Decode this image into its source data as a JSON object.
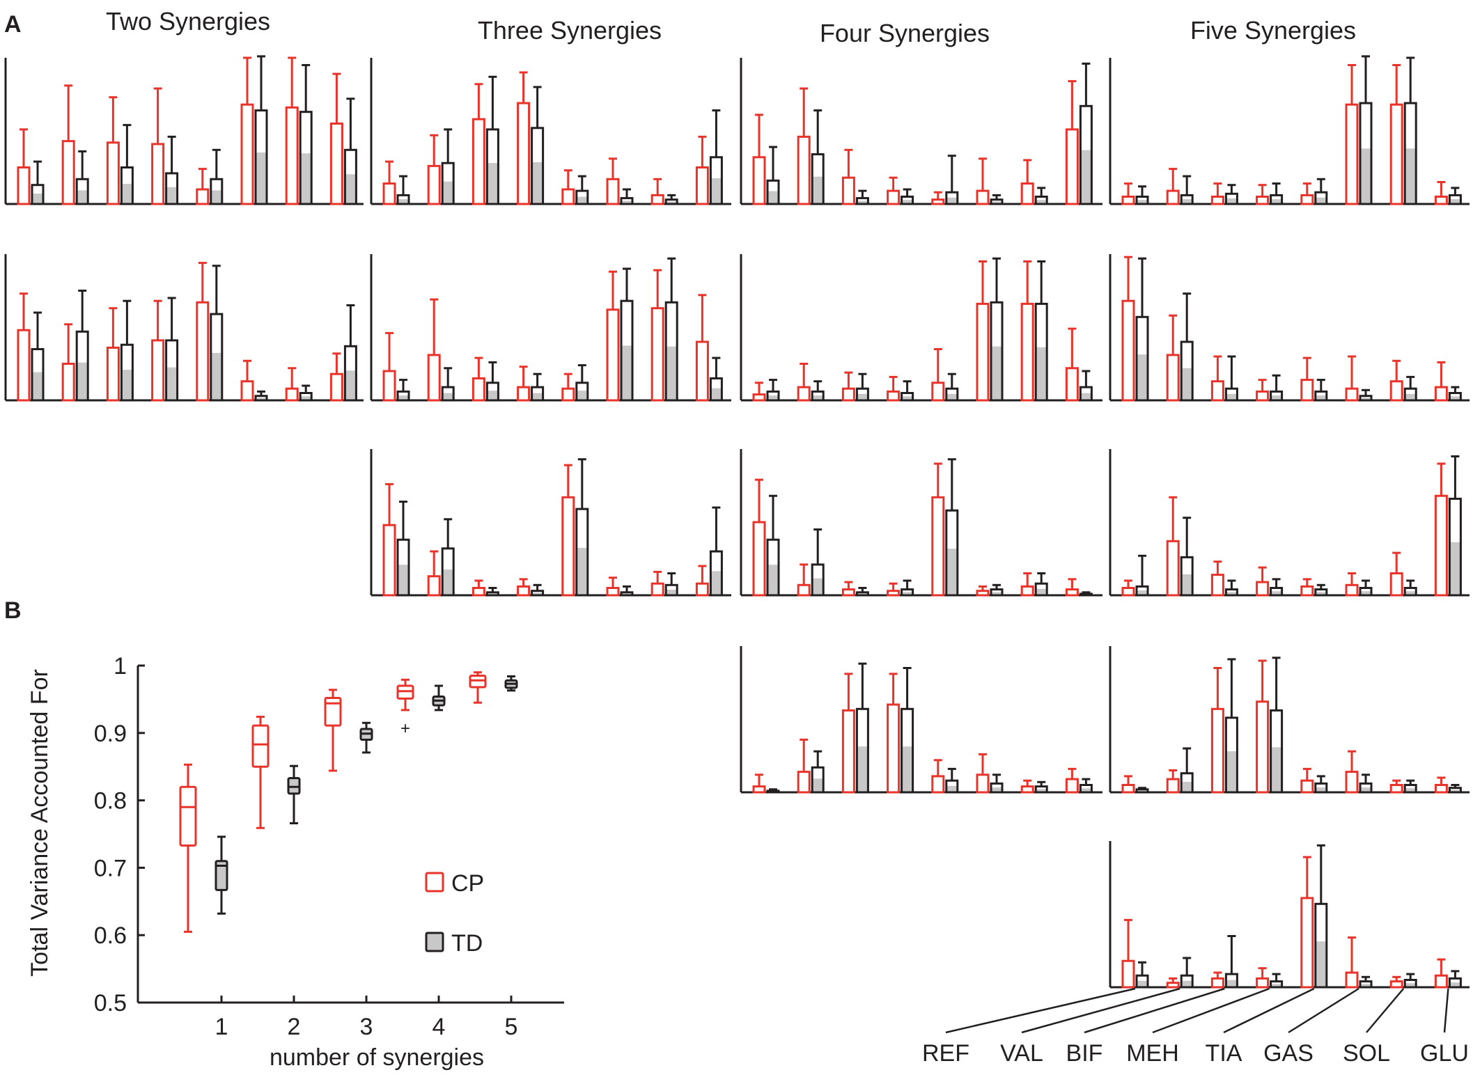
{
  "panel_labels": {
    "a": "A",
    "b": "B"
  },
  "colors": {
    "cp": "#e8332a",
    "td": "#231f20",
    "td_fill": "#c8c8c8",
    "axis": "#231f20"
  },
  "muscles": [
    "REF",
    "VAL",
    "BIF",
    "MEH",
    "TIA",
    "GAS",
    "SOL",
    "GLU"
  ],
  "chart_data": [
    {
      "type": "bar",
      "panel": "A",
      "title": "Two Synergies",
      "categories": [
        "REF",
        "VAL",
        "BIF",
        "MEH",
        "TIA",
        "GAS",
        "SOL",
        "GLU"
      ],
      "synergies": [
        {
          "series": [
            {
              "name": "CP",
              "values": [
                0.25,
                0.43,
                0.42,
                0.41,
                0.1,
                0.68,
                0.66,
                0.55
              ],
              "errors": [
                0.26,
                0.38,
                0.31,
                0.38,
                0.14,
                0.32,
                0.34,
                0.34
              ]
            },
            {
              "name": "TD",
              "values": [
                0.13,
                0.17,
                0.25,
                0.21,
                0.17,
                0.64,
                0.63,
                0.37
              ],
              "errors": [
                0.16,
                0.19,
                0.29,
                0.25,
                0.2,
                0.37,
                0.32,
                0.35
              ]
            }
          ]
        },
        {
          "series": [
            {
              "name": "CP",
              "values": [
                0.48,
                0.25,
                0.36,
                0.41,
                0.67,
                0.13,
                0.08,
                0.18
              ],
              "errors": [
                0.25,
                0.27,
                0.27,
                0.27,
                0.27,
                0.14,
                0.14,
                0.14
              ]
            },
            {
              "name": "TD",
              "values": [
                0.35,
                0.47,
                0.38,
                0.41,
                0.59,
                0.03,
                0.05,
                0.37
              ],
              "errors": [
                0.25,
                0.28,
                0.3,
                0.29,
                0.33,
                0.03,
                0.05,
                0.28
              ]
            }
          ]
        }
      ]
    },
    {
      "type": "bar",
      "panel": "A",
      "title": "Three Synergies",
      "categories": [
        "REF",
        "VAL",
        "BIF",
        "MEH",
        "TIA",
        "GAS",
        "SOL",
        "GLU"
      ],
      "synergies": [
        {
          "series": [
            {
              "name": "CP",
              "values": [
                0.14,
                0.26,
                0.58,
                0.69,
                0.1,
                0.17,
                0.06,
                0.25
              ],
              "errors": [
                0.15,
                0.21,
                0.24,
                0.21,
                0.13,
                0.14,
                0.11,
                0.21
              ]
            },
            {
              "name": "TD",
              "values": [
                0.06,
                0.28,
                0.51,
                0.52,
                0.09,
                0.04,
                0.03,
                0.32
              ],
              "errors": [
                0.13,
                0.23,
                0.36,
                0.28,
                0.1,
                0.06,
                0.03,
                0.32
              ]
            }
          ]
        },
        {
          "series": [
            {
              "name": "CP",
              "values": [
                0.2,
                0.31,
                0.15,
                0.09,
                0.08,
                0.62,
                0.63,
                0.4
              ],
              "errors": [
                0.26,
                0.38,
                0.14,
                0.14,
                0.1,
                0.26,
                0.26,
                0.32
              ]
            },
            {
              "name": "TD",
              "values": [
                0.06,
                0.09,
                0.12,
                0.09,
                0.12,
                0.68,
                0.67,
                0.15
              ],
              "errors": [
                0.08,
                0.13,
                0.14,
                0.09,
                0.12,
                0.22,
                0.3,
                0.14
              ]
            }
          ]
        },
        {
          "series": [
            {
              "name": "CP",
              "values": [
                0.48,
                0.13,
                0.05,
                0.06,
                0.67,
                0.05,
                0.08,
                0.08
              ],
              "errors": [
                0.28,
                0.17,
                0.05,
                0.05,
                0.22,
                0.07,
                0.08,
                0.12
              ]
            },
            {
              "name": "TD",
              "values": [
                0.38,
                0.32,
                0.02,
                0.03,
                0.59,
                0.02,
                0.07,
                0.3
              ],
              "errors": [
                0.26,
                0.2,
                0.03,
                0.04,
                0.34,
                0.04,
                0.08,
                0.3
              ]
            }
          ]
        }
      ]
    },
    {
      "type": "bar",
      "panel": "A",
      "title": "Four Synergies",
      "categories": [
        "REF",
        "VAL",
        "BIF",
        "MEH",
        "TIA",
        "GAS",
        "SOL",
        "GLU"
      ],
      "synergies": [
        {
          "series": [
            {
              "name": "CP",
              "values": [
                0.32,
                0.46,
                0.18,
                0.09,
                0.03,
                0.09,
                0.14,
                0.51
              ],
              "errors": [
                0.29,
                0.33,
                0.19,
                0.09,
                0.05,
                0.22,
                0.16,
                0.33
              ]
            },
            {
              "name": "TD",
              "values": [
                0.16,
                0.34,
                0.04,
                0.05,
                0.08,
                0.03,
                0.05,
                0.67
              ],
              "errors": [
                0.23,
                0.3,
                0.05,
                0.05,
                0.25,
                0.03,
                0.06,
                0.29
              ]
            }
          ]
        },
        {
          "series": [
            {
              "name": "CP",
              "values": [
                0.04,
                0.09,
                0.08,
                0.06,
                0.12,
                0.66,
                0.66,
                0.22
              ],
              "errors": [
                0.08,
                0.16,
                0.11,
                0.1,
                0.23,
                0.29,
                0.29,
                0.27
              ]
            },
            {
              "name": "TD",
              "values": [
                0.06,
                0.06,
                0.08,
                0.05,
                0.08,
                0.67,
                0.66,
                0.09
              ],
              "errors": [
                0.08,
                0.07,
                0.1,
                0.08,
                0.1,
                0.3,
                0.29,
                0.11
              ]
            }
          ]
        },
        {
          "series": [
            {
              "name": "CP",
              "values": [
                0.5,
                0.07,
                0.04,
                0.03,
                0.67,
                0.03,
                0.06,
                0.04
              ],
              "errors": [
                0.29,
                0.14,
                0.05,
                0.05,
                0.23,
                0.03,
                0.09,
                0.07
              ]
            },
            {
              "name": "TD",
              "values": [
                0.38,
                0.21,
                0.02,
                0.04,
                0.58,
                0.04,
                0.08,
                0.01
              ],
              "errors": [
                0.3,
                0.24,
                0.03,
                0.06,
                0.35,
                0.03,
                0.07,
                0.01
              ]
            }
          ]
        },
        {
          "series": [
            {
              "name": "CP",
              "values": [
                0.04,
                0.14,
                0.56,
                0.6,
                0.11,
                0.12,
                0.04,
                0.09
              ],
              "errors": [
                0.08,
                0.22,
                0.25,
                0.21,
                0.11,
                0.14,
                0.04,
                0.07
              ]
            },
            {
              "name": "TD",
              "values": [
                0.01,
                0.17,
                0.57,
                0.57,
                0.08,
                0.06,
                0.04,
                0.05
              ],
              "errors": [
                0.01,
                0.11,
                0.31,
                0.28,
                0.08,
                0.06,
                0.03,
                0.04
              ]
            }
          ]
        }
      ]
    },
    {
      "type": "bar",
      "panel": "A",
      "title": "Five Synergies",
      "categories": [
        "REF",
        "VAL",
        "BIF",
        "MEH",
        "TIA",
        "GAS",
        "SOL",
        "GLU"
      ],
      "synergies": [
        {
          "series": [
            {
              "name": "CP",
              "values": [
                0.05,
                0.09,
                0.05,
                0.05,
                0.06,
                0.68,
                0.68,
                0.05
              ],
              "errors": [
                0.09,
                0.15,
                0.09,
                0.08,
                0.08,
                0.27,
                0.27,
                0.1
              ]
            },
            {
              "name": "TD",
              "values": [
                0.05,
                0.06,
                0.07,
                0.06,
                0.08,
                0.69,
                0.69,
                0.06
              ],
              "errors": [
                0.07,
                0.13,
                0.06,
                0.08,
                0.09,
                0.32,
                0.31,
                0.05
              ]
            }
          ]
        },
        {
          "series": [
            {
              "name": "CP",
              "values": [
                0.68,
                0.31,
                0.13,
                0.06,
                0.14,
                0.08,
                0.13,
                0.09
              ],
              "errors": [
                0.3,
                0.27,
                0.17,
                0.08,
                0.15,
                0.22,
                0.14,
                0.17
              ]
            },
            {
              "name": "TD",
              "values": [
                0.57,
                0.4,
                0.08,
                0.06,
                0.06,
                0.03,
                0.08,
                0.05
              ],
              "errors": [
                0.4,
                0.33,
                0.22,
                0.11,
                0.08,
                0.04,
                0.08,
                0.04
              ]
            }
          ]
        },
        {
          "series": [
            {
              "name": "CP",
              "values": [
                0.05,
                0.37,
                0.14,
                0.09,
                0.06,
                0.07,
                0.15,
                0.68
              ],
              "errors": [
                0.05,
                0.3,
                0.09,
                0.1,
                0.05,
                0.08,
                0.14,
                0.22
              ]
            },
            {
              "name": "TD",
              "values": [
                0.06,
                0.26,
                0.04,
                0.05,
                0.04,
                0.05,
                0.05,
                0.66
              ],
              "errors": [
                0.21,
                0.27,
                0.06,
                0.06,
                0.03,
                0.05,
                0.05,
                0.29
              ]
            }
          ]
        },
        {
          "series": [
            {
              "name": "CP",
              "values": [
                0.05,
                0.09,
                0.57,
                0.62,
                0.08,
                0.14,
                0.05,
                0.05
              ],
              "errors": [
                0.06,
                0.06,
                0.28,
                0.28,
                0.08,
                0.14,
                0.03,
                0.05
              ]
            },
            {
              "name": "TD",
              "values": [
                0.02,
                0.13,
                0.51,
                0.56,
                0.06,
                0.06,
                0.05,
                0.03
              ],
              "errors": [
                0.01,
                0.17,
                0.4,
                0.36,
                0.05,
                0.06,
                0.03,
                0.02
              ]
            }
          ]
        },
        {
          "series": [
            {
              "name": "CP",
              "values": [
                0.18,
                0.03,
                0.06,
                0.06,
                0.61,
                0.1,
                0.04,
                0.08
              ],
              "errors": [
                0.28,
                0.03,
                0.04,
                0.07,
                0.28,
                0.24,
                0.03,
                0.11
              ]
            },
            {
              "name": "TD",
              "values": [
                0.08,
                0.08,
                0.09,
                0.04,
                0.57,
                0.04,
                0.05,
                0.06
              ],
              "errors": [
                0.09,
                0.12,
                0.26,
                0.05,
                0.4,
                0.03,
                0.04,
                0.05
              ]
            }
          ]
        }
      ]
    },
    {
      "type": "box",
      "panel": "B",
      "title": "",
      "xlabel": "number of synergies",
      "ylabel": "Total Variance Accounted For",
      "ylim": [
        0.5,
        1.0
      ],
      "yticks": [
        "0.5",
        "0.6",
        "0.7",
        "0.8",
        "0.9",
        "1"
      ],
      "xticks": [
        "1",
        "2",
        "3",
        "4",
        "5"
      ],
      "legend": [
        {
          "name": "CP",
          "label": "CP"
        },
        {
          "name": "TD",
          "label": "TD"
        }
      ],
      "series": [
        {
          "name": "CP",
          "boxes": [
            {
              "x": 1,
              "whisker_low": 0.605,
              "q1": 0.733,
              "median": 0.79,
              "q3": 0.82,
              "whisker_high": 0.853
            },
            {
              "x": 2,
              "whisker_low": 0.759,
              "q1": 0.85,
              "median": 0.883,
              "q3": 0.911,
              "whisker_high": 0.924
            },
            {
              "x": 3,
              "whisker_low": 0.844,
              "q1": 0.911,
              "median": 0.944,
              "q3": 0.952,
              "whisker_high": 0.964
            },
            {
              "x": 4,
              "whisker_low": 0.934,
              "q1": 0.951,
              "median": 0.962,
              "q3": 0.97,
              "whisker_high": 0.979,
              "outliers": [
                0.908
              ]
            },
            {
              "x": 5,
              "whisker_low": 0.945,
              "q1": 0.968,
              "median": 0.978,
              "q3": 0.985,
              "whisker_high": 0.99
            }
          ]
        },
        {
          "name": "TD",
          "boxes": [
            {
              "x": 1,
              "whisker_low": 0.632,
              "q1": 0.667,
              "median": 0.703,
              "q3": 0.71,
              "whisker_high": 0.746
            },
            {
              "x": 2,
              "whisker_low": 0.766,
              "q1": 0.81,
              "median": 0.82,
              "q3": 0.833,
              "whisker_high": 0.851
            },
            {
              "x": 3,
              "whisker_low": 0.871,
              "q1": 0.89,
              "median": 0.899,
              "q3": 0.906,
              "whisker_high": 0.915
            },
            {
              "x": 4,
              "whisker_low": 0.934,
              "q1": 0.941,
              "median": 0.948,
              "q3": 0.954,
              "whisker_high": 0.97
            },
            {
              "x": 5,
              "whisker_low": 0.963,
              "q1": 0.967,
              "median": 0.973,
              "q3": 0.978,
              "whisker_high": 0.984
            }
          ]
        }
      ]
    }
  ]
}
